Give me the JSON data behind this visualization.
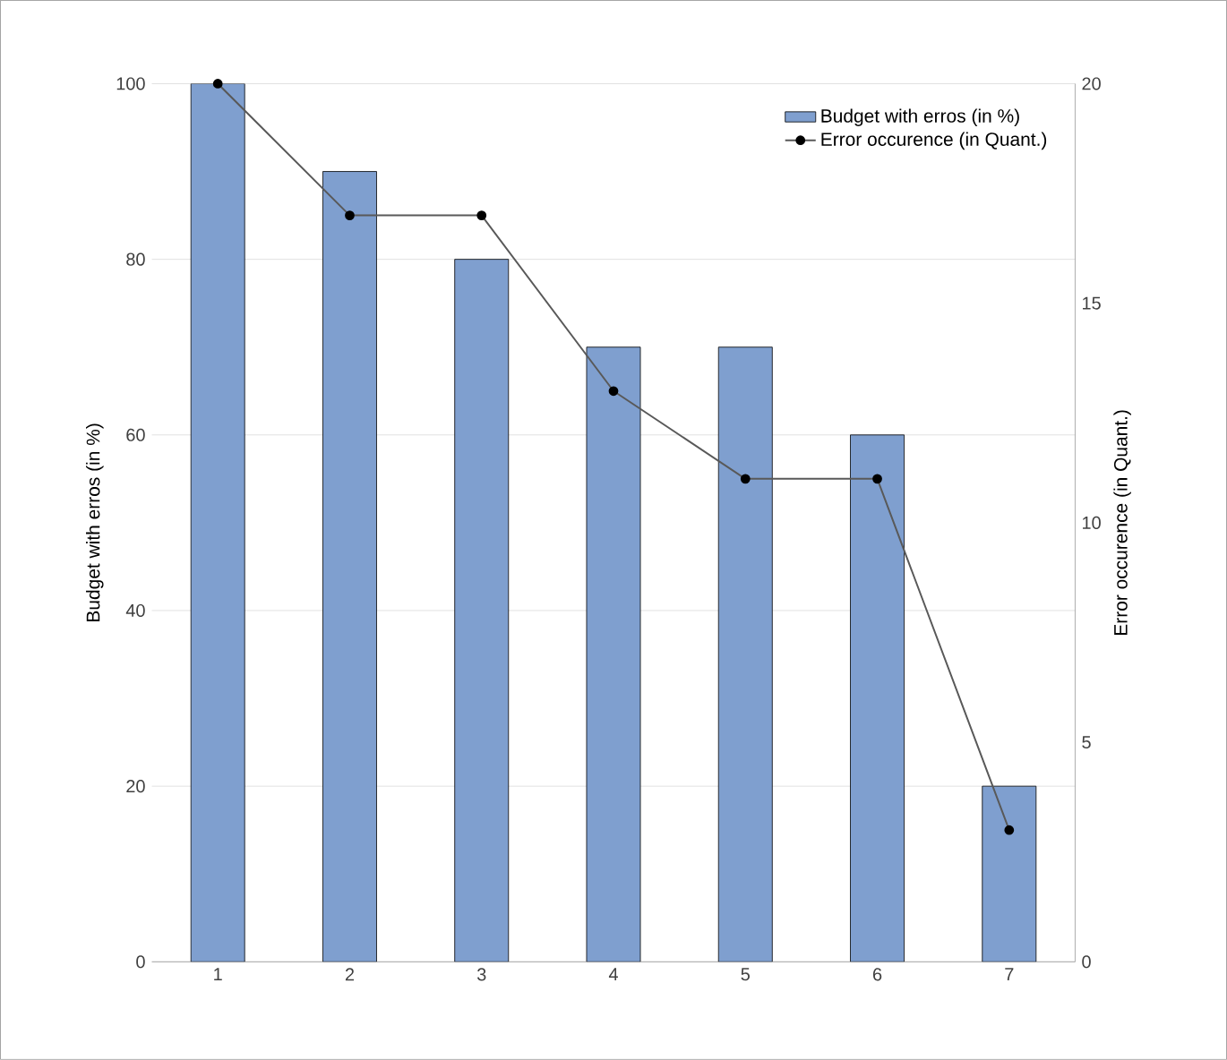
{
  "chart_data": {
    "type": "bar",
    "categories": [
      "1",
      "2",
      "3",
      "4",
      "5",
      "6",
      "7"
    ],
    "series": [
      {
        "name": "Budget with erros (in %)",
        "color": "#7f9fcf",
        "values": [
          100,
          90,
          80,
          70,
          70,
          60,
          20
        ]
      },
      {
        "name": "Error occurence (in Quant.)",
        "type": "line",
        "axis": "y2",
        "color": "#595959",
        "marker": "circle",
        "values": [
          20,
          17,
          17,
          13,
          11,
          11,
          3
        ]
      }
    ],
    "ylabel": "Budget with erros (in %)",
    "y2label": "Error occurence (in Quant.)",
    "ylim": [
      0,
      100
    ],
    "yticks": [
      0,
      20,
      40,
      60,
      80,
      100
    ],
    "y2lim": [
      0,
      20
    ],
    "y2ticks": [
      0,
      5,
      10,
      15,
      20
    ],
    "grid": "y",
    "legend": "top right"
  }
}
